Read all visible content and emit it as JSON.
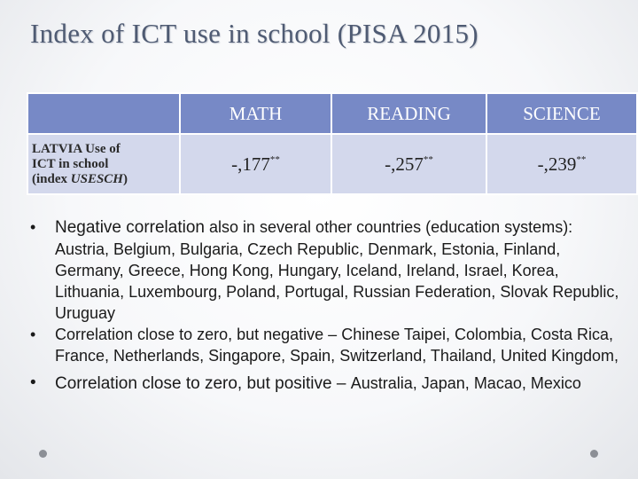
{
  "title": "Index of ICT use in school (PISA 2015)",
  "table": {
    "headers": [
      "MATH",
      "READING",
      "SCIENCE"
    ],
    "row_label_line1": "LATVIA Use of",
    "row_label_line2": "ICT in school",
    "row_label_prefix": "(index ",
    "row_label_index": "USESCH",
    "row_label_suffix": ")",
    "values": [
      "-,177",
      "-,257",
      "-,239"
    ],
    "significance": "**"
  },
  "bullets": {
    "b1_lead": "Negative correlation",
    "b1_rest": "also in several other countries (education systems): Austria, Belgium, Bulgaria, Czech Republic, Denmark, Estonia, Finland, Germany, Greece, Hong Kong, Hungary, Iceland, Ireland, Israel, Korea, Lithuania, Luxembourg, Poland, Portugal, Russian Federation, Slovak Republic, Uruguay",
    "b2_lead": "Correlation close to zero, but negative –",
    "b2_rest": "Chinese Taipei, Colombia, Costa Rica, France, Netherlands, Singapore, Spain, Switzerland, Thailand, United Kingdom,",
    "b3_lead": "Correlation close to zero, but positive –",
    "b3_rest": "Australia, Japan, Macao, Mexico",
    "marker": "•"
  }
}
